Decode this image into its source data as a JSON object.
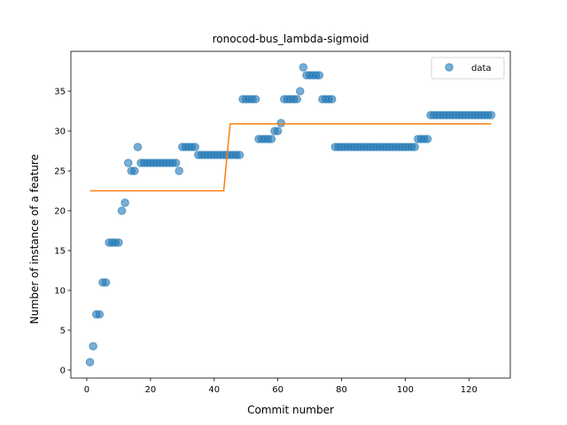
{
  "chart_data": {
    "type": "scatter",
    "title": "ronocod-bus_lambda-sigmoid",
    "xlabel": "Commit number",
    "ylabel": "Number of instance of a feature",
    "xlim": [
      -5,
      133
    ],
    "ylim": [
      -1,
      40
    ],
    "xticks": [
      0,
      20,
      40,
      60,
      80,
      100,
      120
    ],
    "yticks": [
      0,
      5,
      10,
      15,
      20,
      25,
      30,
      35
    ],
    "grid": false,
    "legend": {
      "placement": "top-right",
      "entries": [
        "data"
      ]
    },
    "colors": {
      "scatter": "#1f77b4",
      "fit": "#ff7f0e"
    },
    "series": [
      {
        "name": "data",
        "kind": "scatter",
        "x": [
          1,
          2,
          3,
          4,
          5,
          6,
          7,
          8,
          9,
          10,
          11,
          12,
          13,
          14,
          15,
          16,
          17,
          18,
          19,
          20,
          21,
          22,
          23,
          24,
          25,
          26,
          27,
          28,
          29,
          30,
          31,
          32,
          33,
          34,
          35,
          36,
          37,
          38,
          39,
          40,
          41,
          42,
          43,
          44,
          45,
          46,
          47,
          48,
          49,
          50,
          51,
          52,
          53,
          54,
          55,
          56,
          57,
          58,
          59,
          60,
          61,
          62,
          63,
          64,
          65,
          66,
          67,
          68,
          69,
          70,
          71,
          72,
          73,
          74,
          75,
          76,
          77,
          78,
          79,
          80,
          81,
          82,
          83,
          84,
          85,
          86,
          87,
          88,
          89,
          90,
          91,
          92,
          93,
          94,
          95,
          96,
          97,
          98,
          99,
          100,
          101,
          102,
          103,
          104,
          105,
          106,
          107,
          108,
          109,
          110,
          111,
          112,
          113,
          114,
          115,
          116,
          117,
          118,
          119,
          120,
          121,
          122,
          123,
          124,
          125,
          126,
          127
        ],
        "y": [
          1,
          3,
          7,
          7,
          11,
          11,
          16,
          16,
          16,
          16,
          20,
          21,
          26,
          25,
          25,
          28,
          26,
          26,
          26,
          26,
          26,
          26,
          26,
          26,
          26,
          26,
          26,
          26,
          25,
          28,
          28,
          28,
          28,
          28,
          27,
          27,
          27,
          27,
          27,
          27,
          27,
          27,
          27,
          27,
          27,
          27,
          27,
          27,
          34,
          34,
          34,
          34,
          34,
          29,
          29,
          29,
          29,
          29,
          30,
          30,
          31,
          34,
          34,
          34,
          34,
          34,
          35,
          38,
          37,
          37,
          37,
          37,
          37,
          34,
          34,
          34,
          34,
          28,
          28,
          28,
          28,
          28,
          28,
          28,
          28,
          28,
          28,
          28,
          28,
          28,
          28,
          28,
          28,
          28,
          28,
          28,
          28,
          28,
          28,
          28,
          28,
          28,
          28,
          29,
          29,
          29,
          29,
          32,
          32,
          32,
          32,
          32,
          32,
          32,
          32,
          32,
          32,
          32,
          32,
          32,
          32,
          32,
          32,
          32,
          32,
          32,
          32
        ]
      },
      {
        "name": "",
        "kind": "line",
        "x": [
          1,
          43,
          45,
          127
        ],
        "y": [
          22.5,
          22.5,
          30.9,
          30.9
        ]
      }
    ]
  }
}
